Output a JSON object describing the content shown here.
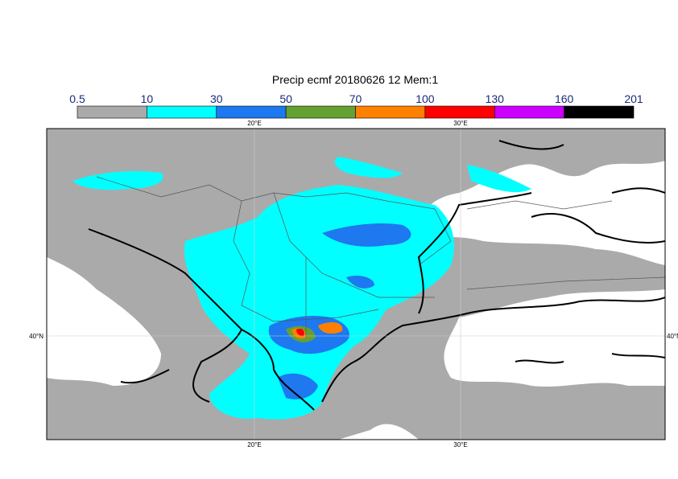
{
  "title": "Precip ecmf 20180626 12 Mem:1",
  "colorbar": {
    "levels": [
      0.5,
      10,
      30,
      50,
      70,
      100,
      130,
      160,
      201
    ],
    "colors": [
      "#aaaaaa",
      "#00ffff",
      "#1e78f0",
      "#64a032",
      "#ff8000",
      "#ff0000",
      "#cc00ff",
      "#000000"
    ]
  },
  "map": {
    "lon_labels": [
      "20°E",
      "30°E"
    ],
    "lat_labels": [
      "40°N"
    ]
  }
}
